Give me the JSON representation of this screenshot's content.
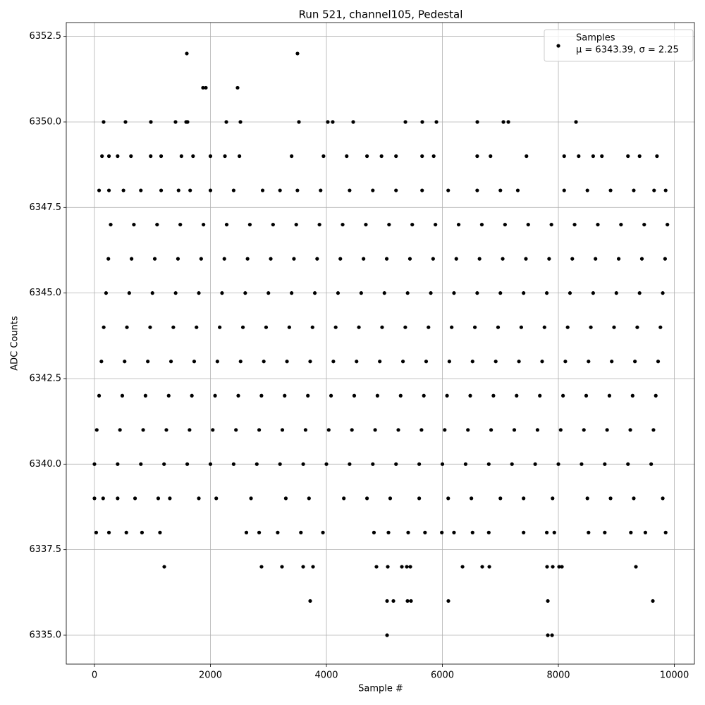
{
  "chart_data": {
    "type": "scatter",
    "title": "Run 521, channel105, Pedestal",
    "xlabel": "Sample #",
    "ylabel": "ADC Counts",
    "xlim": [
      -486,
      10346
    ],
    "ylim": [
      6334.155,
      6352.905
    ],
    "xticks": [
      0,
      2000,
      4000,
      6000,
      8000,
      10000
    ],
    "yticks": [
      {
        "value": 6335,
        "label": "6335.0"
      },
      6337.5,
      {
        "value": 6340,
        "label": "6340.0"
      },
      6342.5,
      {
        "value": 6345,
        "label": "6345.0"
      },
      6347.5,
      {
        "value": 6350,
        "label": "6350.0"
      },
      6352.5
    ],
    "grid": true,
    "legend": "upper right",
    "series": [
      {
        "name": "Samples",
        "label": "μ = 6343.39, σ = 2.25",
        "color": "#000000",
        "x": [
          0,
          400,
          800,
          1200,
          1600,
          2000,
          2400,
          2800,
          3200,
          3600,
          4000,
          4400,
          4800,
          5200,
          5600,
          6000,
          6400,
          6800,
          7200,
          7600,
          8000,
          8400,
          8800,
          9200,
          9600,
          40,
          440,
          840,
          1240,
          1640,
          2040,
          2440,
          2840,
          3240,
          3640,
          4040,
          4440,
          4840,
          5240,
          5640,
          6040,
          6440,
          6840,
          7240,
          7640,
          8040,
          8440,
          8840,
          9240,
          9640,
          80,
          480,
          880,
          1280,
          1680,
          2080,
          2480,
          2880,
          3280,
          3680,
          4080,
          4480,
          4880,
          5280,
          5680,
          6080,
          6480,
          6880,
          7280,
          7680,
          8080,
          8480,
          8880,
          9280,
          9680,
          120,
          520,
          920,
          1320,
          1720,
          2120,
          2520,
          2920,
          3320,
          3720,
          4120,
          4520,
          4920,
          5320,
          5720,
          6120,
          6520,
          6920,
          7320,
          7720,
          8120,
          8520,
          8920,
          9320,
          9720,
          160,
          560,
          960,
          1360,
          1760,
          2160,
          2560,
          2960,
          3360,
          3760,
          4160,
          4560,
          4960,
          5360,
          5760,
          6160,
          6560,
          6960,
          7360,
          7760,
          8160,
          8560,
          8960,
          9360,
          9760,
          200,
          600,
          1000,
          1400,
          1800,
          2200,
          2600,
          3000,
          3400,
          3800,
          4200,
          4600,
          5000,
          5400,
          5800,
          6200,
          6600,
          7000,
          7400,
          7800,
          8200,
          8600,
          9000,
          9400,
          9800,
          240,
          640,
          1040,
          1440,
          1840,
          2240,
          2640,
          3040,
          3440,
          3840,
          4240,
          4640,
          5040,
          5440,
          5840,
          6240,
          6640,
          7040,
          7440,
          7840,
          8240,
          8640,
          9040,
          9440,
          9840,
          280,
          680,
          1080,
          1480,
          1880,
          2280,
          2680,
          3080,
          3480,
          3880,
          4280,
          4680,
          5080,
          5480,
          5880,
          6280,
          6680,
          7080,
          7480,
          7880,
          8280,
          8680,
          9080,
          9480,
          9880,
          0,
          150,
          400,
          700,
          1100,
          1300,
          1800,
          2100,
          2700,
          3300,
          3700,
          4300,
          4700,
          5100,
          5600,
          6100,
          6500,
          7000,
          7400,
          7900,
          8500,
          8900,
          9300,
          9800,
          30,
          250,
          550,
          820,
          1130,
          2620,
          2840,
          3160,
          3560,
          3940,
          4820,
          5070,
          5410,
          5700,
          5990,
          6200,
          6520,
          6800,
          7400,
          7800,
          7930,
          8520,
          8800,
          9250,
          9500,
          9850,
          80,
          250,
          500,
          800,
          1150,
          1450,
          1650,
          2000,
          2400,
          2900,
          3200,
          3500,
          3900,
          4400,
          4800,
          5200,
          5650,
          6100,
          6600,
          7000,
          7300,
          8100,
          8500,
          8900,
          9300,
          9650,
          9850,
          130,
          250,
          400,
          630,
          970,
          1150,
          1500,
          1700,
          2000,
          2250,
          2500,
          3400,
          3950,
          4350,
          4700,
          4950,
          5200,
          5650,
          5850,
          6600,
          6830,
          7450,
          8100,
          8350,
          8600,
          8750,
          9200,
          9400,
          9700,
          158,
          535,
          973,
          1398,
          1581,
          1605,
          2274,
          2517,
          3526,
          4024,
          4109,
          4462,
          5362,
          5653,
          5897,
          6602,
          7052,
          7137,
          8304,
          1872,
          1921,
          2468,
          1593,
          3501,
          1204,
          2881,
          3234,
          3599,
          3769,
          4863,
          5058,
          5301,
          5386,
          5447,
          6347,
          6687,
          6809,
          7805,
          7903,
          8012,
          8061,
          9337,
          3720,
          5046,
          5155,
          5398,
          5459,
          6103,
          7818,
          9629,
          5046,
          7818,
          7891
        ],
        "values": [
          6340,
          6340,
          6340,
          6340,
          6340,
          6340,
          6340,
          6340,
          6340,
          6340,
          6340,
          6340,
          6340,
          6340,
          6340,
          6340,
          6340,
          6340,
          6340,
          6340,
          6340,
          6340,
          6340,
          6340,
          6340,
          6341,
          6341,
          6341,
          6341,
          6341,
          6341,
          6341,
          6341,
          6341,
          6341,
          6341,
          6341,
          6341,
          6341,
          6341,
          6341,
          6341,
          6341,
          6341,
          6341,
          6341,
          6341,
          6341,
          6341,
          6341,
          6342,
          6342,
          6342,
          6342,
          6342,
          6342,
          6342,
          6342,
          6342,
          6342,
          6342,
          6342,
          6342,
          6342,
          6342,
          6342,
          6342,
          6342,
          6342,
          6342,
          6342,
          6342,
          6342,
          6342,
          6342,
          6343,
          6343,
          6343,
          6343,
          6343,
          6343,
          6343,
          6343,
          6343,
          6343,
          6343,
          6343,
          6343,
          6343,
          6343,
          6343,
          6343,
          6343,
          6343,
          6343,
          6343,
          6343,
          6343,
          6343,
          6343,
          6344,
          6344,
          6344,
          6344,
          6344,
          6344,
          6344,
          6344,
          6344,
          6344,
          6344,
          6344,
          6344,
          6344,
          6344,
          6344,
          6344,
          6344,
          6344,
          6344,
          6344,
          6344,
          6344,
          6344,
          6344,
          6345,
          6345,
          6345,
          6345,
          6345,
          6345,
          6345,
          6345,
          6345,
          6345,
          6345,
          6345,
          6345,
          6345,
          6345,
          6345,
          6345,
          6345,
          6345,
          6345,
          6345,
          6345,
          6345,
          6345,
          6345,
          6346,
          6346,
          6346,
          6346,
          6346,
          6346,
          6346,
          6346,
          6346,
          6346,
          6346,
          6346,
          6346,
          6346,
          6346,
          6346,
          6346,
          6346,
          6346,
          6346,
          6346,
          6346,
          6346,
          6346,
          6346,
          6347,
          6347,
          6347,
          6347,
          6347,
          6347,
          6347,
          6347,
          6347,
          6347,
          6347,
          6347,
          6347,
          6347,
          6347,
          6347,
          6347,
          6347,
          6347,
          6347,
          6347,
          6347,
          6347,
          6347,
          6347,
          6339,
          6339,
          6339,
          6339,
          6339,
          6339,
          6339,
          6339,
          6339,
          6339,
          6339,
          6339,
          6339,
          6339,
          6339,
          6339,
          6339,
          6339,
          6339,
          6339,
          6339,
          6339,
          6339,
          6339,
          6338,
          6338,
          6338,
          6338,
          6338,
          6338,
          6338,
          6338,
          6338,
          6338,
          6338,
          6338,
          6338,
          6338,
          6338,
          6338,
          6338,
          6338,
          6338,
          6338,
          6338,
          6338,
          6338,
          6338,
          6338,
          6338,
          6348,
          6348,
          6348,
          6348,
          6348,
          6348,
          6348,
          6348,
          6348,
          6348,
          6348,
          6348,
          6348,
          6348,
          6348,
          6348,
          6348,
          6348,
          6348,
          6348,
          6348,
          6348,
          6348,
          6348,
          6348,
          6348,
          6348,
          6349,
          6349,
          6349,
          6349,
          6349,
          6349,
          6349,
          6349,
          6349,
          6349,
          6349,
          6349,
          6349,
          6349,
          6349,
          6349,
          6349,
          6349,
          6349,
          6349,
          6349,
          6349,
          6349,
          6349,
          6349,
          6349,
          6349,
          6349,
          6349,
          6350,
          6350,
          6350,
          6350,
          6350,
          6350,
          6350,
          6350,
          6350,
          6350,
          6350,
          6350,
          6350,
          6350,
          6350,
          6350,
          6350,
          6350,
          6350,
          6351,
          6351,
          6351,
          6352,
          6352,
          6337,
          6337,
          6337,
          6337,
          6337,
          6337,
          6337,
          6337,
          6337,
          6337,
          6337,
          6337,
          6337,
          6337,
          6337,
          6337,
          6337,
          6337,
          6336,
          6336,
          6336,
          6336,
          6336,
          6336,
          6336,
          6336,
          6335,
          6335,
          6335
        ]
      }
    ]
  }
}
